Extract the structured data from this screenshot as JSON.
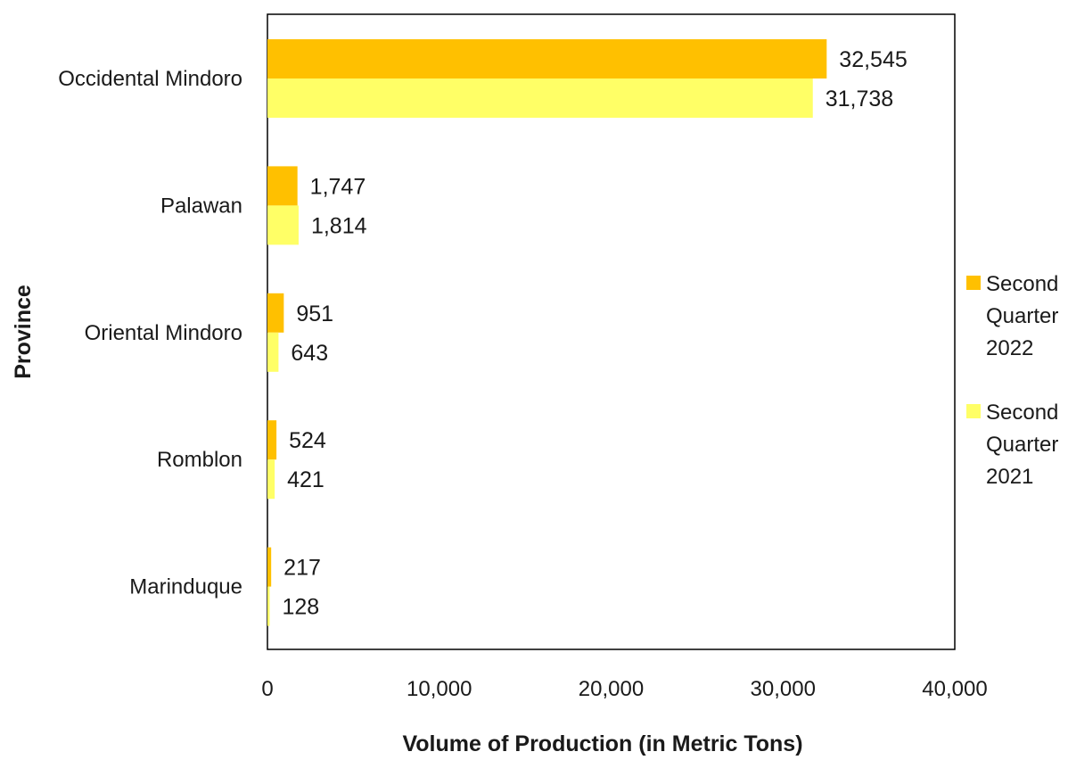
{
  "chart_data": {
    "type": "bar",
    "orientation": "horizontal",
    "title": "",
    "xlabel": "Volume of Production (in Metric Tons)",
    "ylabel": "Province",
    "categories": [
      "Occidental Mindoro",
      "Palawan",
      "Oriental Mindoro",
      "Romblon",
      "Marinduque"
    ],
    "series": [
      {
        "name": "Second Quarter 2022",
        "legend_lines": [
          "Second",
          "Quarter",
          "2022"
        ],
        "color": "#FFC000",
        "values": [
          32545,
          1747,
          951,
          524,
          217
        ],
        "value_labels": [
          "32,545",
          "1,747",
          "951",
          "524",
          "217"
        ]
      },
      {
        "name": "Second Quarter 2021",
        "legend_lines": [
          "Second",
          "Quarter",
          "2021"
        ],
        "color": "#FFFF66",
        "values": [
          31738,
          1814,
          643,
          421,
          128
        ],
        "value_labels": [
          "31,738",
          "1,814",
          "643",
          "421",
          "128"
        ]
      }
    ],
    "xlim": [
      0,
      40000
    ],
    "xticks": [
      0,
      10000,
      20000,
      30000,
      40000
    ],
    "xtick_labels": [
      "0",
      "10,000",
      "20,000",
      "30,000",
      "40,000"
    ],
    "grid": false,
    "legend_position": "right"
  }
}
